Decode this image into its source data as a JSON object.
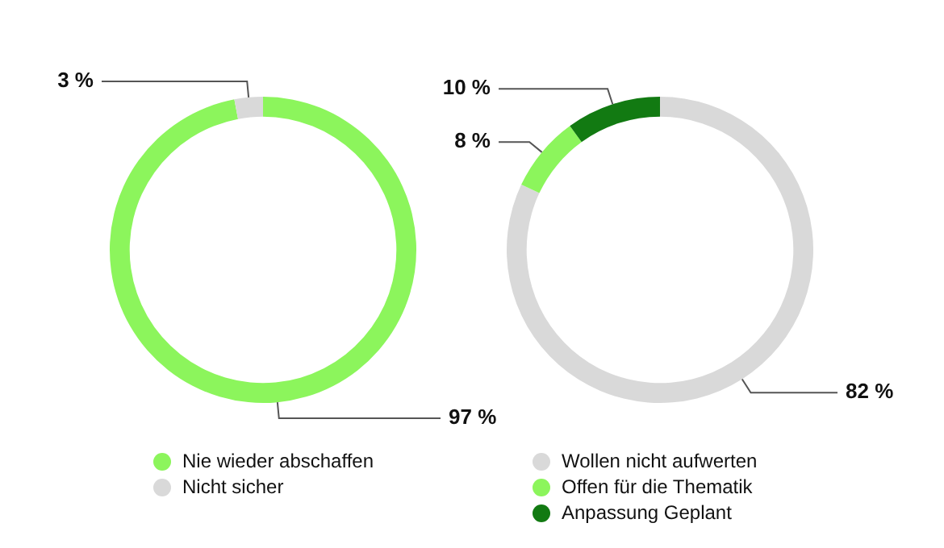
{
  "chart_data": [
    {
      "type": "donut",
      "categories": [
        "Nie wieder abschaffen",
        "Nicht sicher"
      ],
      "values": [
        97,
        3
      ],
      "colors": [
        "#8cf55c",
        "#d9d9d9"
      ],
      "value_labels": [
        "97 %",
        "3 %"
      ],
      "legend": "bottom"
    },
    {
      "type": "donut",
      "categories": [
        "Wollen nicht aufwerten",
        "Offen für die Thematik",
        "Anpassung Geplant"
      ],
      "values": [
        82,
        8,
        10
      ],
      "colors": [
        "#d9d9d9",
        "#8cf55c",
        "#127a12"
      ],
      "value_labels": [
        "82 %",
        "8 %",
        "10 %"
      ],
      "legend": "bottom"
    }
  ]
}
